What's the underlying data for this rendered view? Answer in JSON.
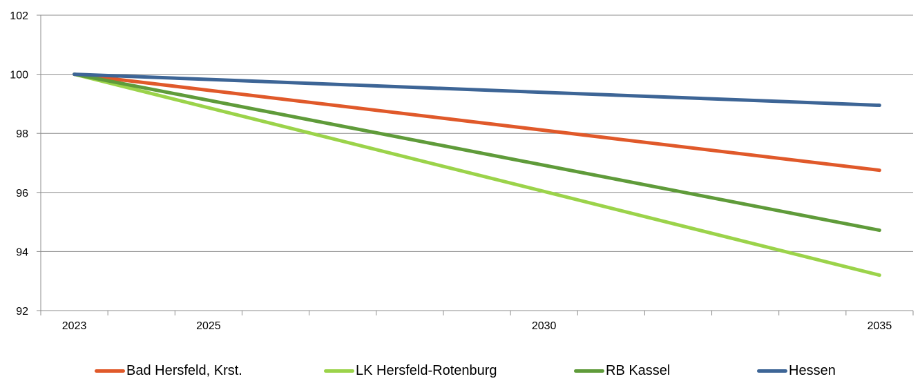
{
  "chart_data": {
    "type": "line",
    "title": "",
    "xlabel": "",
    "ylabel": "",
    "x": [
      2023,
      2035
    ],
    "x_tick_labels": [
      "2023",
      "2025",
      "2030",
      "2035"
    ],
    "x_tick_values": [
      2023,
      2025,
      2030,
      2035
    ],
    "xlim": [
      2022.5,
      2035.5
    ],
    "ylim": [
      92,
      102
    ],
    "y_ticks": [
      92,
      94,
      96,
      98,
      100,
      102
    ],
    "grid": "horizontal",
    "legend_position": "bottom",
    "series": [
      {
        "name": "Bad Hersfeld, Krst.",
        "color": "#e0592a",
        "values": [
          100,
          96.75
        ]
      },
      {
        "name": "LK Hersfeld-Rotenburg",
        "color": "#9bd34a",
        "values": [
          100,
          93.2
        ]
      },
      {
        "name": "RB Kassel",
        "color": "#5f9b3a",
        "values": [
          100,
          94.72
        ]
      },
      {
        "name": "Hessen",
        "color": "#3d6596",
        "values": [
          100,
          98.95
        ]
      }
    ]
  }
}
